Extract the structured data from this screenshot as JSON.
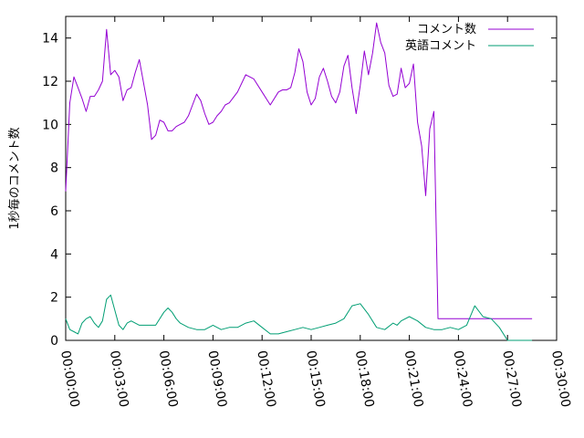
{
  "chart_data": {
    "type": "line",
    "title": "",
    "xlabel": "",
    "ylabel": "1秒毎のコメント数",
    "xlim": [
      "00:00:00",
      "00:30:00"
    ],
    "ylim": [
      0,
      15
    ],
    "x_ticks": [
      "00:00:00",
      "00:03:00",
      "00:06:00",
      "00:09:00",
      "00:12:00",
      "00:15:00",
      "00:18:00",
      "00:21:00",
      "00:24:00",
      "00:27:00",
      "00:30:00"
    ],
    "y_ticks": [
      0,
      2,
      4,
      6,
      8,
      10,
      12,
      14
    ],
    "grid": false,
    "legend_position": "top-right",
    "series": [
      {
        "name": "コメント数",
        "color": "#9400d3",
        "x": [
          "00:00:00",
          "00:00:15",
          "00:00:30",
          "00:00:45",
          "00:01:00",
          "00:01:15",
          "00:01:30",
          "00:01:45",
          "00:02:00",
          "00:02:15",
          "00:02:30",
          "00:02:45",
          "00:03:00",
          "00:03:15",
          "00:03:30",
          "00:03:45",
          "00:04:00",
          "00:04:15",
          "00:04:30",
          "00:05:00",
          "00:05:15",
          "00:05:30",
          "00:05:45",
          "00:06:00",
          "00:06:15",
          "00:06:30",
          "00:06:45",
          "00:07:00",
          "00:07:15",
          "00:07:30",
          "00:07:45",
          "00:08:00",
          "00:08:15",
          "00:08:30",
          "00:08:45",
          "00:09:00",
          "00:09:15",
          "00:09:30",
          "00:09:45",
          "00:10:00",
          "00:10:30",
          "00:11:00",
          "00:11:30",
          "00:12:00",
          "00:12:30",
          "00:13:00",
          "00:13:15",
          "00:13:30",
          "00:13:45",
          "00:14:00",
          "00:14:15",
          "00:14:30",
          "00:14:45",
          "00:15:00",
          "00:15:15",
          "00:15:30",
          "00:15:45",
          "00:16:00",
          "00:16:15",
          "00:16:30",
          "00:16:45",
          "00:17:00",
          "00:17:15",
          "00:17:30",
          "00:17:45",
          "00:18:00",
          "00:18:15",
          "00:18:30",
          "00:18:45",
          "00:19:00",
          "00:19:15",
          "00:19:30",
          "00:19:45",
          "00:20:00",
          "00:20:15",
          "00:20:30",
          "00:20:45",
          "00:21:00",
          "00:21:15",
          "00:21:30",
          "00:21:45",
          "00:22:00",
          "00:22:15",
          "00:22:30",
          "00:22:45",
          "00:23:00",
          "00:23:15",
          "00:23:30",
          "00:23:45",
          "00:24:00",
          "00:24:15",
          "00:24:30",
          "00:24:45",
          "00:25:00",
          "00:25:15",
          "00:25:30",
          "00:25:45",
          "00:26:00",
          "00:26:15",
          "00:26:30",
          "00:26:45",
          "00:27:00",
          "00:27:15",
          "00:27:30",
          "00:27:45",
          "00:28:00",
          "00:28:15",
          "00:28:30"
        ],
        "y": [
          6.9,
          11.0,
          12.2,
          11.7,
          11.2,
          10.6,
          11.3,
          11.3,
          11.6,
          12.0,
          14.4,
          12.3,
          12.5,
          12.2,
          11.1,
          11.6,
          11.7,
          12.4,
          13.0,
          10.9,
          9.3,
          9.5,
          10.2,
          10.1,
          9.7,
          9.7,
          9.9,
          10.0,
          10.1,
          10.4,
          10.9,
          11.4,
          11.1,
          10.5,
          10.0,
          10.1,
          10.4,
          10.6,
          10.9,
          11.0,
          11.5,
          12.3,
          12.1,
          11.5,
          10.9,
          11.5,
          11.6,
          11.6,
          11.7,
          12.4,
          13.5,
          12.9,
          11.5,
          10.9,
          11.2,
          12.2,
          12.6,
          12.0,
          11.3,
          11.0,
          11.5,
          12.7,
          13.2,
          11.7,
          10.5,
          11.8,
          13.4,
          12.3,
          13.3,
          14.7,
          13.8,
          13.3,
          11.8,
          11.3,
          11.4,
          12.6,
          11.7,
          11.9,
          12.8,
          10.1,
          9.0,
          6.7,
          9.8,
          10.6,
          1.0,
          1.0,
          1.0,
          1.0,
          1.0,
          1.0,
          1.0,
          1.0,
          1.0,
          1.0,
          1.0,
          1.0,
          1.0,
          1.0,
          1.0,
          1.0,
          1.0,
          1.0,
          1.0,
          1.0,
          1.0,
          1.0,
          1.0,
          1.0
        ]
      },
      {
        "name": "英語コメント",
        "color": "#009e73",
        "x": [
          "00:00:00",
          "00:00:15",
          "00:00:30",
          "00:00:45",
          "00:01:00",
          "00:01:15",
          "00:01:30",
          "00:01:45",
          "00:02:00",
          "00:02:15",
          "00:02:30",
          "00:02:45",
          "00:03:00",
          "00:03:15",
          "00:03:30",
          "00:03:45",
          "00:04:00",
          "00:04:15",
          "00:04:30",
          "00:05:00",
          "00:05:30",
          "00:06:00",
          "00:06:15",
          "00:06:30",
          "00:06:45",
          "00:07:00",
          "00:07:15",
          "00:07:30",
          "00:08:00",
          "00:08:30",
          "00:09:00",
          "00:09:30",
          "00:10:00",
          "00:10:30",
          "00:11:00",
          "00:11:30",
          "00:12:00",
          "00:12:30",
          "00:13:00",
          "00:13:30",
          "00:14:00",
          "00:14:30",
          "00:15:00",
          "00:15:30",
          "00:16:00",
          "00:16:30",
          "00:17:00",
          "00:17:30",
          "00:18:00",
          "00:18:30",
          "00:19:00",
          "00:19:30",
          "00:20:00",
          "00:20:15",
          "00:20:30",
          "00:21:00",
          "00:21:30",
          "00:22:00",
          "00:22:30",
          "00:23:00",
          "00:23:30",
          "00:24:00",
          "00:24:30",
          "00:25:00",
          "00:25:30",
          "00:26:00",
          "00:26:30",
          "00:27:00",
          "00:27:15",
          "00:27:30",
          "00:27:45",
          "00:28:00",
          "00:28:15",
          "00:28:30"
        ],
        "y": [
          1.0,
          0.5,
          0.4,
          0.3,
          0.8,
          1.0,
          1.1,
          0.8,
          0.6,
          0.9,
          1.9,
          2.1,
          1.4,
          0.7,
          0.5,
          0.8,
          0.9,
          0.8,
          0.7,
          0.7,
          0.7,
          1.3,
          1.5,
          1.3,
          1.0,
          0.8,
          0.7,
          0.6,
          0.5,
          0.5,
          0.7,
          0.5,
          0.6,
          0.6,
          0.8,
          0.9,
          0.6,
          0.3,
          0.3,
          0.4,
          0.5,
          0.6,
          0.5,
          0.6,
          0.7,
          0.8,
          1.0,
          1.6,
          1.7,
          1.2,
          0.6,
          0.5,
          0.8,
          0.7,
          0.9,
          1.1,
          0.9,
          0.6,
          0.5,
          0.5,
          0.6,
          0.5,
          0.7,
          1.6,
          1.1,
          1.0,
          0.6,
          0.0,
          0.0,
          0.0,
          0.0,
          0.0,
          0.0,
          0.0
        ]
      }
    ]
  }
}
